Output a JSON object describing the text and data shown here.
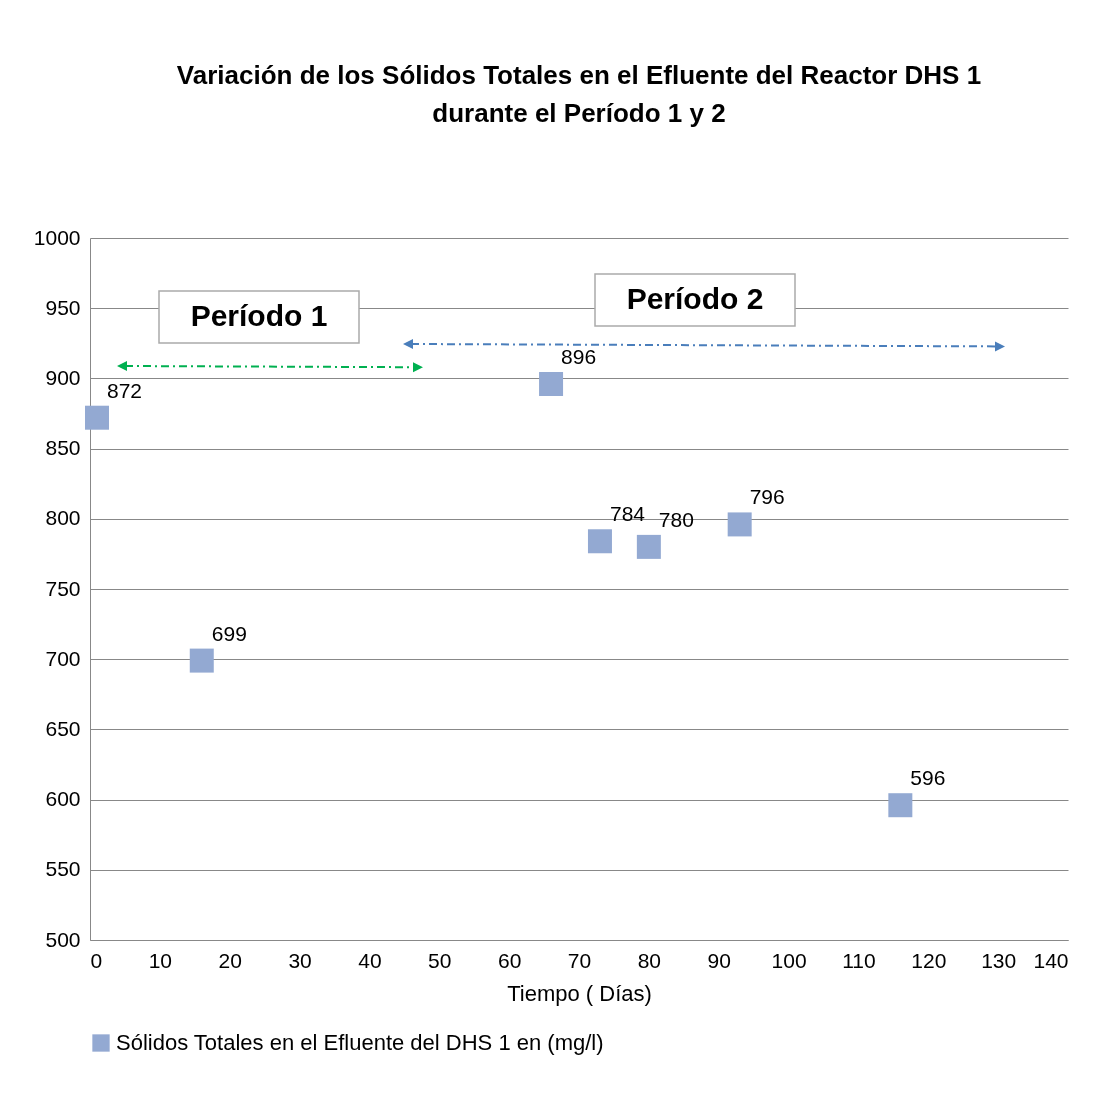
{
  "chart_data": {
    "type": "scatter",
    "title": "Variación de los Sólidos Totales en el Efluente del Reactor DHS 1\ndurante el Período  1 y 2",
    "xlabel": "Tiempo ( Días)",
    "x": [
      1,
      16,
      66,
      73,
      80,
      93,
      116
    ],
    "series": [
      {
        "name": "Sólidos Totales en el Efluente del DHS 1 en (mg/l)",
        "color": "#93a9d2",
        "values": [
          872,
          699,
          896,
          784,
          780,
          796,
          596
        ]
      }
    ],
    "xlim": [
      0,
      140
    ],
    "xticks": [
      0,
      10,
      20,
      30,
      40,
      50,
      60,
      70,
      80,
      90,
      100,
      110,
      120,
      130,
      140
    ],
    "ylim": [
      500,
      1000
    ],
    "yticks": [
      500,
      550,
      600,
      650,
      700,
      750,
      800,
      850,
      900,
      950,
      1000
    ],
    "annotations": [
      "Período 1",
      "Período 2"
    ],
    "grid": "y",
    "marker": "square",
    "data_labels": true,
    "legend": "bottom"
  }
}
